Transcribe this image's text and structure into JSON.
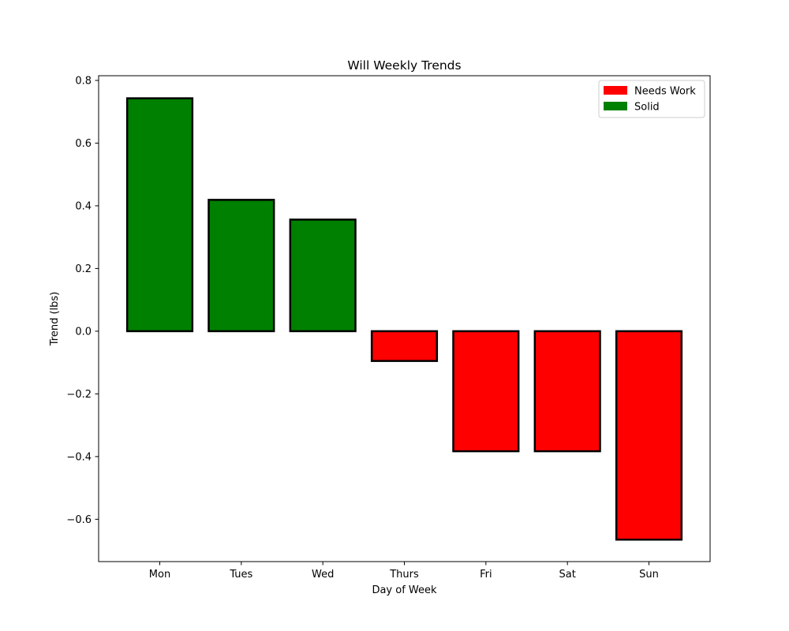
{
  "chart_data": {
    "type": "bar",
    "title": "Will Weekly Trends",
    "xlabel": "Day of Week",
    "ylabel": "Trend (lbs)",
    "categories": [
      "Mon",
      "Tues",
      "Wed",
      "Thurs",
      "Fri",
      "Sat",
      "Sun"
    ],
    "values": [
      0.743,
      0.419,
      0.356,
      -0.095,
      -0.383,
      -0.383,
      -0.665
    ],
    "bar_colors": [
      "#008000",
      "#008000",
      "#008000",
      "#ff0000",
      "#ff0000",
      "#ff0000",
      "#ff0000"
    ],
    "ylim": [
      -0.735,
      0.815
    ],
    "yticks": [
      -0.6,
      -0.4,
      -0.2,
      0.0,
      0.2,
      0.4,
      0.6,
      0.8
    ],
    "ytick_labels": [
      "−0.6",
      "−0.4",
      "−0.2",
      "0.0",
      "0.2",
      "0.4",
      "0.6",
      "0.8"
    ],
    "grid": false,
    "legend": {
      "placement": "top-right",
      "entries": [
        {
          "label": "Needs Work",
          "color": "#ff0000"
        },
        {
          "label": "Solid",
          "color": "#008000"
        }
      ]
    }
  }
}
